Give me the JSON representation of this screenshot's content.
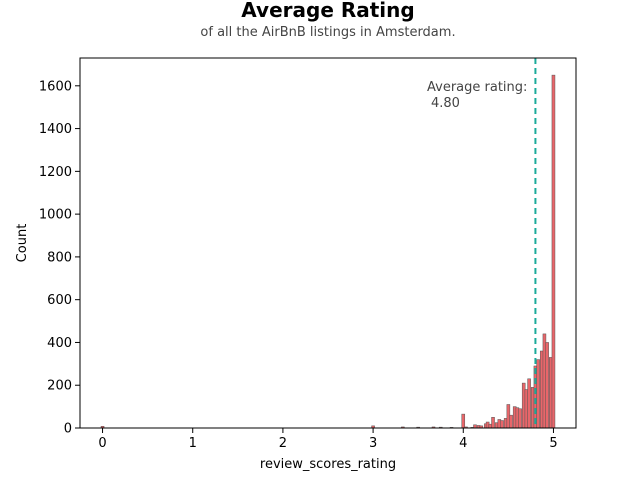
{
  "chart_data": {
    "type": "bar",
    "title": "Average Rating",
    "subtitle": "of all the AirBnB listings in Amsterdam.",
    "xlabel": "review_scores_rating",
    "ylabel": "Count",
    "xlim": [
      -0.25,
      5.25
    ],
    "ylim": [
      0,
      1730
    ],
    "xticks": [
      0,
      1,
      2,
      3,
      4,
      5
    ],
    "yticks": [
      0,
      200,
      400,
      600,
      800,
      1000,
      1200,
      1400,
      1600
    ],
    "grid": false,
    "bin_width": 0.0333,
    "bar_color": "#e8666a",
    "bar_edge_color": "#555555",
    "mean_line_color": "#1aaa9a",
    "mean_value": 4.8,
    "annotation": {
      "line1": "Average rating:",
      "line2": "4.80"
    },
    "bins": [
      {
        "x": 0.0,
        "count": 8
      },
      {
        "x": 3.0,
        "count": 10
      },
      {
        "x": 3.33,
        "count": 5
      },
      {
        "x": 3.5,
        "count": 4
      },
      {
        "x": 3.67,
        "count": 5
      },
      {
        "x": 3.75,
        "count": 4
      },
      {
        "x": 3.87,
        "count": 3
      },
      {
        "x": 4.0,
        "count": 65
      },
      {
        "x": 4.03,
        "count": 5
      },
      {
        "x": 4.1,
        "count": 3
      },
      {
        "x": 4.13,
        "count": 15
      },
      {
        "x": 4.17,
        "count": 12
      },
      {
        "x": 4.2,
        "count": 10
      },
      {
        "x": 4.25,
        "count": 20
      },
      {
        "x": 4.27,
        "count": 28
      },
      {
        "x": 4.3,
        "count": 18
      },
      {
        "x": 4.33,
        "count": 50
      },
      {
        "x": 4.37,
        "count": 25
      },
      {
        "x": 4.4,
        "count": 40
      },
      {
        "x": 4.43,
        "count": 35
      },
      {
        "x": 4.47,
        "count": 45
      },
      {
        "x": 4.5,
        "count": 110
      },
      {
        "x": 4.53,
        "count": 60
      },
      {
        "x": 4.57,
        "count": 100
      },
      {
        "x": 4.6,
        "count": 95
      },
      {
        "x": 4.63,
        "count": 90
      },
      {
        "x": 4.67,
        "count": 210
      },
      {
        "x": 4.7,
        "count": 180
      },
      {
        "x": 4.73,
        "count": 230
      },
      {
        "x": 4.77,
        "count": 190
      },
      {
        "x": 4.8,
        "count": 290
      },
      {
        "x": 4.83,
        "count": 320
      },
      {
        "x": 4.87,
        "count": 360
      },
      {
        "x": 4.9,
        "count": 440
      },
      {
        "x": 4.93,
        "count": 400
      },
      {
        "x": 4.97,
        "count": 330
      },
      {
        "x": 5.0,
        "count": 1650
      }
    ]
  }
}
